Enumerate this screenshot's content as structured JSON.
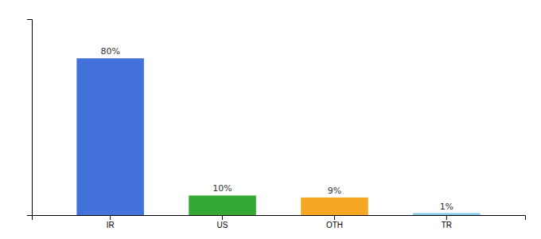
{
  "chart_data": {
    "type": "bar",
    "categories": [
      "IR",
      "US",
      "OTH",
      "TR"
    ],
    "values": [
      80,
      10,
      9,
      1
    ],
    "value_labels": [
      "80%",
      "10%",
      "9%",
      "1%"
    ],
    "data_labels": true,
    "colors": [
      "#4472db",
      "#33a832",
      "#f5a623",
      "#7ec8e3"
    ],
    "ylim": [
      0,
      100
    ],
    "yticks": [],
    "tick_labels": "x",
    "grid": false
  }
}
